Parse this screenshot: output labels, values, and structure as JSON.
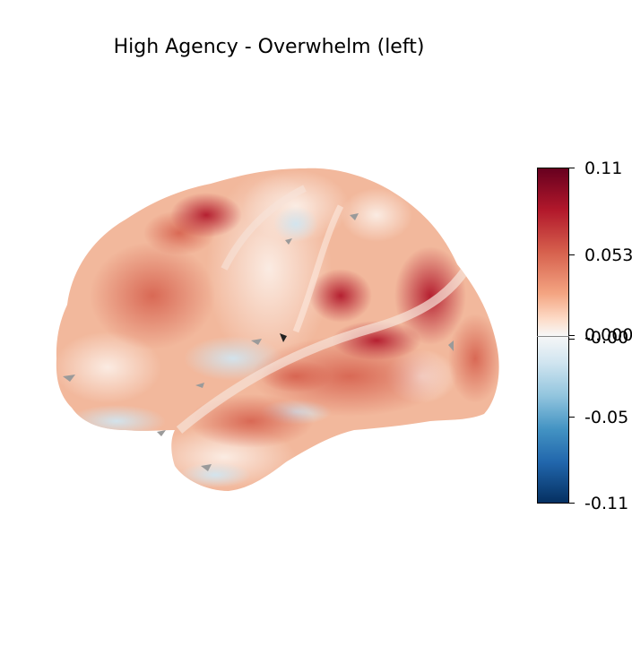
{
  "title": "High Agency - Overwhelm (left)",
  "colorbar": {
    "colormap": "RdBu_r",
    "ticks": [
      "0.11",
      "0.053",
      "0.000",
      "-0.00",
      "-0.05",
      "-0.11"
    ],
    "max": 0.11,
    "min": -0.11
  },
  "colors": {
    "dark_red": "#67001f",
    "red": "#b2182b",
    "salmon": "#d6604d",
    "peach": "#f4a582",
    "light_peach": "#fddbc7",
    "neutral": "#f7f7f7",
    "light_blue": "#d1e5f0",
    "dark_blue": "#053061"
  }
}
